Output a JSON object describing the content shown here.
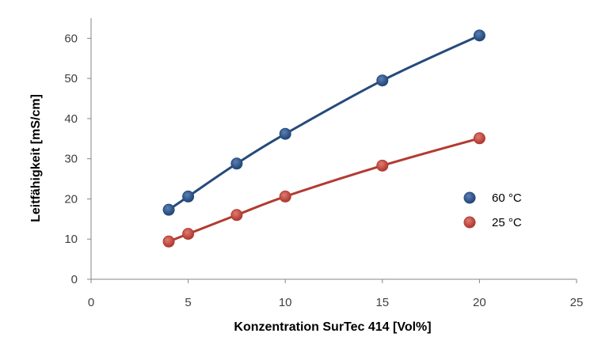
{
  "chart_data": {
    "type": "scatter",
    "title": "",
    "xlabel": "Konzentration  SurTec 414 [Vol%]",
    "ylabel": "Leitfähigkeit [mS/cm]",
    "xlim": [
      0,
      25
    ],
    "ylim": [
      0,
      65
    ],
    "xticks": [
      0,
      5,
      10,
      15,
      20,
      25
    ],
    "yticks": [
      0,
      10,
      20,
      30,
      40,
      50,
      60
    ],
    "grid": false,
    "legend_position": "right",
    "series": [
      {
        "name": "60 °C",
        "color": "#254a7c",
        "x": [
          4,
          5,
          7.5,
          10,
          15,
          20
        ],
        "y": [
          17.3,
          20.6,
          28.8,
          36.2,
          49.5,
          60.7
        ]
      },
      {
        "name": "25 °C",
        "color": "#b23b31",
        "x": [
          4,
          5,
          7.5,
          10,
          15,
          20
        ],
        "y": [
          9.4,
          11.3,
          16.0,
          20.6,
          28.3,
          35.1
        ]
      }
    ]
  }
}
